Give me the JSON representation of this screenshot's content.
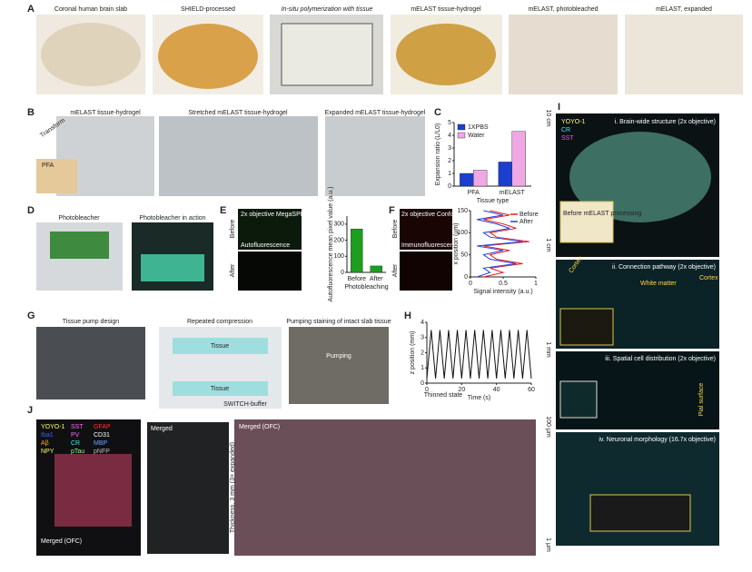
{
  "panels": {
    "a": {
      "letter": "A",
      "captions": [
        "Coronal human brain slab",
        "SHIELD-processed",
        "In-situ polymerization with tissue",
        "mELAST tissue-hydrogel",
        "mELAST, photobleached",
        "mELAST, expanded"
      ]
    },
    "b": {
      "letter": "B",
      "captions": [
        "mELAST tissue-hydrogel",
        "Stretched mELAST tissue-hydrogel",
        "Expanded mELAST tissue-hydrogel"
      ],
      "transform": "Transform",
      "pfa": "PFA"
    },
    "c": {
      "letter": "C",
      "chart": {
        "type": "bar",
        "categories": [
          "PFA",
          "mELAST"
        ],
        "series": [
          {
            "name": "1XPBS",
            "color": "#1c3fd0",
            "values": [
              1.0,
              1.9
            ]
          },
          {
            "name": "Water",
            "color": "#f0a8e4",
            "values": [
              1.25,
              4.3
            ]
          }
        ],
        "ylim": [
          0,
          5
        ],
        "yticks": [
          0,
          1,
          2,
          3,
          4,
          5
        ],
        "ylabel": "Expansion ratio (L/L0)",
        "xlabel": "Tissue type"
      }
    },
    "d": {
      "letter": "D",
      "captions": [
        "Photobleacher",
        "Photobleacher in action"
      ]
    },
    "e": {
      "letter": "E",
      "image_title": "2x objective MegaSPIM",
      "image_label": "Autofluorescence",
      "rows": [
        "Before",
        "After"
      ],
      "chart": {
        "type": "bar",
        "categories": [
          "Before",
          "After"
        ],
        "values": [
          270,
          40
        ],
        "color": "#1e9e1e",
        "ylim": [
          0,
          350
        ],
        "yticks": [
          0,
          100,
          200,
          300
        ],
        "ylabel": "Autofluorescence mean pixel value (a.u.)",
        "xlabel": "Photobleaching"
      }
    },
    "f": {
      "letter": "F",
      "image_title": "2x objective Confocal microscope",
      "image_label": "Immunofluorescence",
      "rows": [
        "Before",
        "After"
      ],
      "chart": {
        "type": "line",
        "positions": [
          0,
          10,
          20,
          30,
          40,
          50,
          60,
          70,
          80,
          90,
          100,
          110,
          120,
          130,
          140,
          150
        ],
        "series": [
          {
            "name": "Before",
            "color": "#e02020",
            "values": [
              0.2,
              0.5,
              0.3,
              0.8,
              0.4,
              0.3,
              0.6,
              0.2,
              0.9,
              0.4,
              0.3,
              0.7,
              0.5,
              0.2,
              0.6,
              0.3
            ]
          },
          {
            "name": "After",
            "color": "#2040e0",
            "values": [
              0.1,
              0.3,
              0.2,
              0.7,
              0.3,
              0.2,
              0.5,
              0.1,
              0.8,
              0.3,
              0.2,
              0.6,
              0.4,
              0.1,
              0.5,
              0.2
            ]
          }
        ],
        "xlim": [
          0,
          1
        ],
        "xticks": [
          0,
          0.5,
          1
        ],
        "ylim": [
          0,
          150
        ],
        "yticks": [
          0,
          50,
          100,
          150
        ],
        "xlabel": "Signal intensity (a.u.)",
        "ylabel": "x position (μm)"
      }
    },
    "g": {
      "letter": "G",
      "captions": [
        "Tissue pump design",
        "Repeated compression",
        "Pumping staining of intact slab tissue"
      ],
      "tissue_top": "Tissue",
      "tissue_bottom": "Tissue",
      "buffer": "SWITCH-buffer",
      "pumping": "Pumping"
    },
    "h": {
      "letter": "H",
      "annotation": "Thinned state",
      "chart": {
        "type": "line",
        "x": [
          0,
          2.5,
          5,
          7.5,
          10,
          12.5,
          15,
          17.5,
          20,
          22.5,
          25,
          27.5,
          30,
          32.5,
          35,
          37.5,
          40,
          42.5,
          45,
          47.5,
          50,
          52.5,
          55,
          57.5,
          60
        ],
        "values": [
          0.3,
          3.5,
          0.3,
          3.5,
          0.3,
          3.5,
          0.3,
          3.5,
          0.3,
          3.5,
          0.3,
          3.5,
          0.3,
          3.5,
          0.3,
          3.5,
          0.3,
          3.5,
          0.3,
          3.5,
          0.3,
          3.5,
          0.3,
          3.5,
          0.3
        ],
        "color": "#111111",
        "xlim": [
          0,
          60
        ],
        "xticks": [
          0,
          20,
          40,
          60
        ],
        "ylim": [
          0,
          4
        ],
        "yticks": [
          0,
          1,
          2,
          3,
          4
        ],
        "xlabel": "Time (s)",
        "ylabel": "z position (mm)"
      }
    },
    "i": {
      "letter": "I",
      "legend": [
        "YOYO-1",
        "CR",
        "SST"
      ],
      "scales": [
        "10 cm",
        "1 cm",
        "1 mm",
        "100 μm",
        "1 μm"
      ],
      "sub1": "i. Brain-wide structure (2x objective)",
      "inset1": "Before mELAST processing",
      "sub2": "ii. Connection pathway (2x objective)",
      "cortex1": "Cortex",
      "cortex2": "Cortex",
      "white_matter": "White matter",
      "sub3": "iii. Spatial cell distribution (2x objective)",
      "pial": "Pial surface",
      "sub4": "iv. Neuronal morphology (16.7x objective)"
    },
    "j": {
      "letter": "J",
      "legend": [
        "YOYO-1",
        "SST",
        "GFAP",
        "Iba1",
        "PV",
        "CD31",
        "Aβ",
        "CR",
        "MBP",
        "NPY",
        "pTau",
        "pNFP"
      ],
      "merged1": "Merged (OFC)",
      "merged2": "Merged",
      "thickness": "Thickness, 3 mm (3× expanded)",
      "merged3": "Merged (OFC)"
    }
  }
}
